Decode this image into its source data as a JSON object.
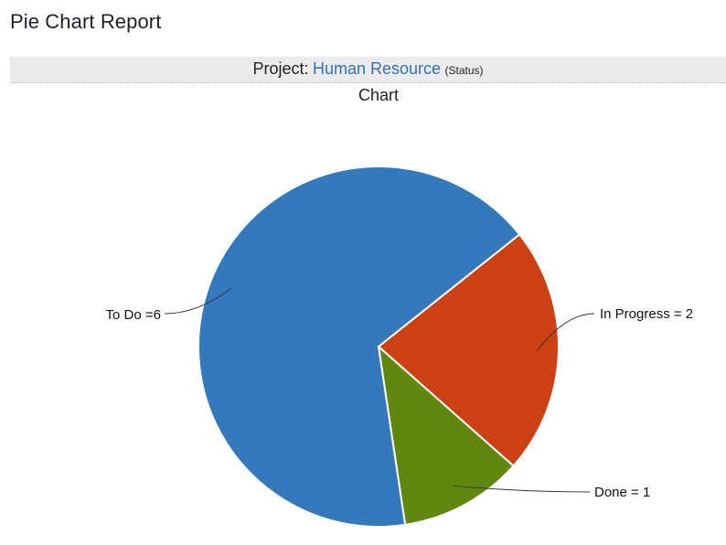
{
  "header": {
    "title": "Pie Chart Report"
  },
  "project": {
    "label": "Project:",
    "name": "Human Resource",
    "sub": "(Status)"
  },
  "chart_data": {
    "type": "pie",
    "title": "Chart",
    "start_angle_deg": 38.5,
    "direction": "clockwise",
    "slices": [
      {
        "name": "In Progress",
        "value": 2,
        "label": "In Progress = 2",
        "color": "#cd4014"
      },
      {
        "name": "Done",
        "value": 1,
        "label": "Done = 1",
        "color": "#62870e"
      },
      {
        "name": "To Do",
        "value": 6,
        "label": "To Do =6",
        "color": "#3479bb"
      }
    ]
  }
}
